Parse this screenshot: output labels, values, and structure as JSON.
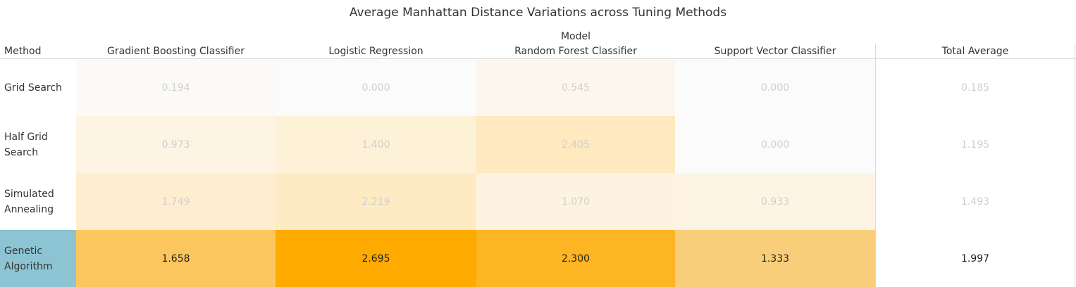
{
  "chart_data": {
    "type": "heatmap",
    "title": "Average Manhattan Distance Variations across Tuning Methods",
    "row_header": "Method",
    "column_group_header": "Model",
    "total_column_header": "Total Average",
    "rows": [
      "Grid Search",
      "Half Grid Search",
      "Simulated Annealing",
      "Genetic Algorithm"
    ],
    "columns": [
      "Gradient Boosting Classifier",
      "Logistic Regression",
      "Random Forest Classifier",
      "Support Vector Classifier"
    ],
    "values": [
      [
        0.194,
        0.0,
        0.545,
        0.0
      ],
      [
        0.973,
        1.4,
        2.405,
        0.0
      ],
      [
        1.749,
        2.219,
        1.07,
        0.933
      ],
      [
        1.658,
        2.695,
        2.3,
        1.333
      ]
    ],
    "value_labels": [
      [
        "0.194",
        "0.000",
        "0.545",
        "0.000"
      ],
      [
        "0.973",
        "1.400",
        "2.405",
        "0.000"
      ],
      [
        "1.749",
        "2.219",
        "1.070",
        "0.933"
      ],
      [
        "1.658",
        "2.695",
        "2.300",
        "1.333"
      ]
    ],
    "totals": [
      "0.185",
      "1.195",
      "1.493",
      "1.997"
    ],
    "color_scale": {
      "low": "#f2f2f2",
      "high": "#ffaa00",
      "domain": [
        0,
        2.695
      ]
    },
    "highlighted_row": "Genetic Algorithm",
    "highlight_color": "#8cc4d4"
  }
}
